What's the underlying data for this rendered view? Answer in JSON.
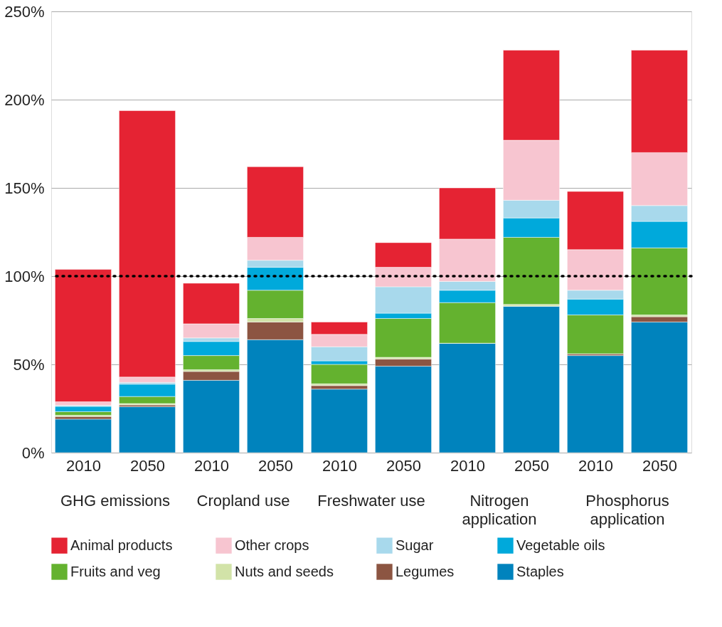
{
  "chart_data": {
    "type": "bar",
    "stacked": true,
    "categories": [
      "2010",
      "2050",
      "2010",
      "2050",
      "2010",
      "2050",
      "2010",
      "2050",
      "2010",
      "2050"
    ],
    "series": [
      {
        "name": "Staples",
        "color": "#0083bd",
        "values": [
          19,
          26,
          41,
          64,
          36,
          49,
          62,
          83,
          55,
          74
        ]
      },
      {
        "name": "Legumes",
        "color": "#8c5542",
        "values": [
          1.5,
          1,
          5,
          10,
          2,
          4,
          0,
          0,
          1,
          3
        ]
      },
      {
        "name": "Nuts and seeds",
        "color": "#d2e3a8",
        "values": [
          0.7,
          0.8,
          1,
          2,
          1,
          1,
          0,
          1,
          0,
          1
        ]
      },
      {
        "name": "Fruits and veg",
        "color": "#64b22f",
        "values": [
          2,
          4,
          8,
          16,
          11,
          22,
          23,
          38,
          22,
          38
        ]
      },
      {
        "name": "Vegetable oils",
        "color": "#00a9db",
        "values": [
          3,
          7,
          8,
          13,
          2,
          3,
          7,
          11,
          9,
          15
        ]
      },
      {
        "name": "Sugar",
        "color": "#a8d9ec",
        "values": [
          0.6,
          1,
          2,
          4,
          8,
          15,
          5,
          10,
          5,
          9
        ]
      },
      {
        "name": "Other crops",
        "color": "#f7c5d0",
        "values": [
          2,
          3,
          8,
          13,
          7,
          11,
          24,
          34,
          23,
          30
        ]
      },
      {
        "name": "Animal products",
        "color": "#e52333",
        "values": [
          75,
          151,
          23,
          40,
          7,
          14,
          29,
          51,
          33,
          58
        ]
      }
    ],
    "ylim": [
      0,
      250
    ],
    "yticks": [
      {
        "value": 0,
        "label": "0%"
      },
      {
        "value": 50,
        "label": "50%"
      },
      {
        "value": 100,
        "label": "100%"
      },
      {
        "value": 150,
        "label": "150%"
      },
      {
        "value": 200,
        "label": "200%"
      },
      {
        "value": 250,
        "label": "250%"
      }
    ],
    "grid": "y",
    "legend": "bottom",
    "ref_lines": [
      {
        "axis": "y",
        "value": 100,
        "color": "#000000",
        "line_style": "dotted"
      }
    ],
    "annotations": [
      "GHG emissions",
      "Cropland use",
      "Freshwater use",
      "Nitrogen application",
      "Phosphorus application"
    ]
  }
}
